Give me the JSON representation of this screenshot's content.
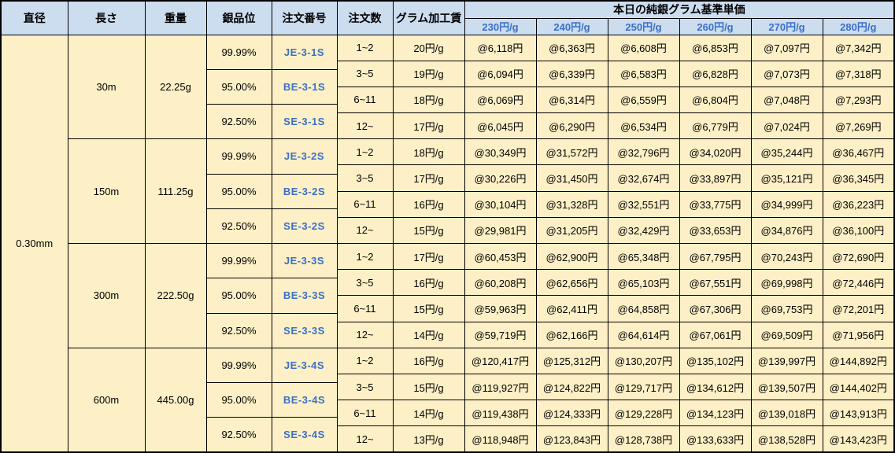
{
  "table": {
    "col_headers": [
      "直径",
      "長さ",
      "重量",
      "銀品位",
      "注文番号",
      "注文数",
      "グラム加工賃"
    ],
    "price_group_title": "本日の純銀グラム基準単価",
    "unit_columns": [
      "230円/g",
      "240円/g",
      "250円/g",
      "260円/g",
      "270円/g",
      "280円/g"
    ],
    "diameter": "0.30mm",
    "blocks": [
      {
        "length": "30m",
        "weight": "22.25g",
        "purities": [
          {
            "purity": "99.99%",
            "order_no": "JE-3-1S"
          },
          {
            "purity": "95.00%",
            "order_no": "BE-3-1S"
          },
          {
            "purity": "92.50%",
            "order_no": "SE-3-1S"
          }
        ],
        "rows": [
          {
            "qty": "1~2",
            "fee": "20円/g",
            "prices": [
              "@6,118円",
              "@6,363円",
              "@6,608円",
              "@6,853円",
              "@7,097円",
              "@7,342円"
            ]
          },
          {
            "qty": "3~5",
            "fee": "19円/g",
            "prices": [
              "@6,094円",
              "@6,339円",
              "@6,583円",
              "@6,828円",
              "@7,073円",
              "@7,318円"
            ]
          },
          {
            "qty": "6~11",
            "fee": "18円/g",
            "prices": [
              "@6,069円",
              "@6,314円",
              "@6,559円",
              "@6,804円",
              "@7,048円",
              "@7,293円"
            ]
          },
          {
            "qty": "12~",
            "fee": "17円/g",
            "prices": [
              "@6,045円",
              "@6,290円",
              "@6,534円",
              "@6,779円",
              "@7,024円",
              "@7,269円"
            ]
          }
        ]
      },
      {
        "length": "150m",
        "weight": "111.25g",
        "purities": [
          {
            "purity": "99.99%",
            "order_no": "JE-3-2S"
          },
          {
            "purity": "95.00%",
            "order_no": "BE-3-2S"
          },
          {
            "purity": "92.50%",
            "order_no": "SE-3-2S"
          }
        ],
        "rows": [
          {
            "qty": "1~2",
            "fee": "18円/g",
            "prices": [
              "@30,349円",
              "@31,572円",
              "@32,796円",
              "@34,020円",
              "@35,244円",
              "@36,467円"
            ]
          },
          {
            "qty": "3~5",
            "fee": "17円/g",
            "prices": [
              "@30,226円",
              "@31,450円",
              "@32,674円",
              "@33,897円",
              "@35,121円",
              "@36,345円"
            ]
          },
          {
            "qty": "6~11",
            "fee": "16円/g",
            "prices": [
              "@30,104円",
              "@31,328円",
              "@32,551円",
              "@33,775円",
              "@34,999円",
              "@36,223円"
            ]
          },
          {
            "qty": "12~",
            "fee": "15円/g",
            "prices": [
              "@29,981円",
              "@31,205円",
              "@32,429円",
              "@33,653円",
              "@34,876円",
              "@36,100円"
            ]
          }
        ]
      },
      {
        "length": "300m",
        "weight": "222.50g",
        "purities": [
          {
            "purity": "99.99%",
            "order_no": "JE-3-3S"
          },
          {
            "purity": "95.00%",
            "order_no": "BE-3-3S"
          },
          {
            "purity": "92.50%",
            "order_no": "SE-3-3S"
          }
        ],
        "rows": [
          {
            "qty": "1~2",
            "fee": "17円/g",
            "prices": [
              "@60,453円",
              "@62,900円",
              "@65,348円",
              "@67,795円",
              "@70,243円",
              "@72,690円"
            ]
          },
          {
            "qty": "3~5",
            "fee": "16円/g",
            "prices": [
              "@60,208円",
              "@62,656円",
              "@65,103円",
              "@67,551円",
              "@69,998円",
              "@72,446円"
            ]
          },
          {
            "qty": "6~11",
            "fee": "15円/g",
            "prices": [
              "@59,963円",
              "@62,411円",
              "@64,858円",
              "@67,306円",
              "@69,753円",
              "@72,201円"
            ]
          },
          {
            "qty": "12~",
            "fee": "14円/g",
            "prices": [
              "@59,719円",
              "@62,166円",
              "@64,614円",
              "@67,061円",
              "@69,509円",
              "@71,956円"
            ]
          }
        ]
      },
      {
        "length": "600m",
        "weight": "445.00g",
        "purities": [
          {
            "purity": "99.99%",
            "order_no": "JE-3-4S"
          },
          {
            "purity": "95.00%",
            "order_no": "BE-3-4S"
          },
          {
            "purity": "92.50%",
            "order_no": "SE-3-4S"
          }
        ],
        "rows": [
          {
            "qty": "1~2",
            "fee": "16円/g",
            "prices": [
              "@120,417円",
              "@125,312円",
              "@130,207円",
              "@135,102円",
              "@139,997円",
              "@144,892円"
            ]
          },
          {
            "qty": "3~5",
            "fee": "15円/g",
            "prices": [
              "@119,927円",
              "@124,822円",
              "@129,717円",
              "@134,612円",
              "@139,507円",
              "@144,402円"
            ]
          },
          {
            "qty": "6~11",
            "fee": "14円/g",
            "prices": [
              "@119,438円",
              "@124,333円",
              "@129,228円",
              "@134,123円",
              "@139,018円",
              "@143,913円"
            ]
          },
          {
            "qty": "12~",
            "fee": "13円/g",
            "prices": [
              "@118,948円",
              "@123,843円",
              "@128,738円",
              "@133,633円",
              "@138,528円",
              "@143,423円"
            ]
          }
        ]
      }
    ],
    "colors": {
      "header_bg": "#cdddf0",
      "body_bg": "#fdf0c6",
      "accent_blue_text": "#3b6fc7",
      "border": "#000000"
    }
  }
}
